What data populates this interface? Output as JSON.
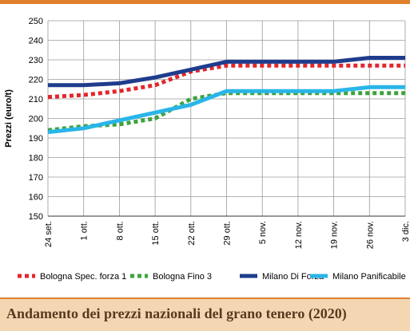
{
  "chart_data": {
    "type": "line",
    "title": "",
    "xlabel": "",
    "ylabel": "Prezzi (euro/t)",
    "ylim": [
      150,
      250
    ],
    "y_ticks": [
      150,
      160,
      170,
      180,
      190,
      200,
      210,
      220,
      230,
      240,
      250
    ],
    "categories": [
      "24 set.",
      "1 ott.",
      "8 ott.",
      "15 ott.",
      "22 ott.",
      "29 ott.",
      "5 nov.",
      "12 nov.",
      "19 nov.",
      "26 nov.",
      "3 dic."
    ],
    "grid": true,
    "legend_position": "bottom",
    "series": [
      {
        "name": "Bologna Spec. forza 1",
        "color": "#e3262b",
        "style": "dotted",
        "values": [
          211,
          212,
          214,
          217,
          224,
          227,
          227,
          227,
          227,
          227,
          227
        ]
      },
      {
        "name": "Bologna Fino 3",
        "color": "#3ca33c",
        "style": "dotted",
        "values": [
          194,
          196,
          197,
          200,
          210,
          213,
          213,
          213,
          213,
          213,
          213
        ]
      },
      {
        "name": "Milano Di Forza",
        "color": "#1f3c8c",
        "style": "solid",
        "values": [
          217,
          217,
          218,
          221,
          225,
          229,
          229,
          229,
          229,
          231,
          231
        ]
      },
      {
        "name": "Milano Panificabile",
        "color": "#29b5e8",
        "style": "solid",
        "values": [
          193,
          195,
          199,
          203,
          207,
          214,
          214,
          214,
          214,
          216,
          216
        ]
      }
    ]
  },
  "footer": {
    "title": "Andamento dei prezzi nazionali del grano tenero (2020)"
  }
}
